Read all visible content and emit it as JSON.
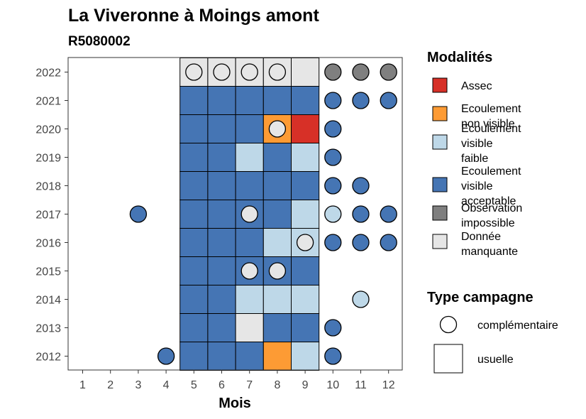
{
  "chart_data": {
    "type": "heatmap",
    "title": "La Viveronne à Moings amont",
    "subtitle": "R5080002",
    "xlabel": "Mois",
    "ylabel": "",
    "x_ticks": [
      "1",
      "2",
      "3",
      "4",
      "5",
      "6",
      "7",
      "8",
      "9",
      "10",
      "11",
      "12"
    ],
    "y_ticks": [
      "2012",
      "2013",
      "2014",
      "2015",
      "2016",
      "2017",
      "2018",
      "2019",
      "2020",
      "2021",
      "2022"
    ],
    "grid": false,
    "legend_position": "right",
    "colors": {
      "assec": "#d73027",
      "non_visible": "#fd9b34",
      "faible": "#bed8e8",
      "acceptable": "#4575b4",
      "impossible": "#7f7f7f",
      "manquante": "#e6e6e6"
    },
    "legend_modalites": {
      "title": "Modalités",
      "items": [
        {
          "key": "assec",
          "lines": [
            "Assec"
          ]
        },
        {
          "key": "non_visible",
          "lines": [
            "Ecoulement",
            "non visible"
          ]
        },
        {
          "key": "faible",
          "lines": [
            "Ecoulement",
            "visible",
            "faible"
          ]
        },
        {
          "key": "acceptable",
          "lines": [
            "Ecoulement",
            "visible",
            "acceptable"
          ]
        },
        {
          "key": "impossible",
          "lines": [
            "Observation",
            "impossible"
          ]
        },
        {
          "key": "manquante",
          "lines": [
            "Donnée",
            "manquante"
          ]
        }
      ]
    },
    "legend_type": {
      "title": "Type campagne",
      "items": [
        {
          "shape": "circle",
          "label": "complémentaire"
        },
        {
          "shape": "square",
          "label": "usuelle"
        }
      ]
    },
    "usuelle": [
      {
        "year": "2022",
        "months": {
          "5": "manquante",
          "6": "manquante",
          "7": "manquante",
          "8": "manquante",
          "9": "manquante"
        }
      },
      {
        "year": "2021",
        "months": {
          "5": "acceptable",
          "6": "acceptable",
          "7": "acceptable",
          "8": "acceptable",
          "9": "acceptable"
        }
      },
      {
        "year": "2020",
        "months": {
          "5": "acceptable",
          "6": "acceptable",
          "7": "acceptable",
          "8": "non_visible",
          "9": "assec"
        }
      },
      {
        "year": "2019",
        "months": {
          "5": "acceptable",
          "6": "acceptable",
          "7": "faible",
          "8": "acceptable",
          "9": "faible"
        }
      },
      {
        "year": "2018",
        "months": {
          "5": "acceptable",
          "6": "acceptable",
          "7": "acceptable",
          "8": "acceptable",
          "9": "acceptable"
        }
      },
      {
        "year": "2017",
        "months": {
          "5": "acceptable",
          "6": "acceptable",
          "7": "acceptable",
          "8": "acceptable",
          "9": "faible"
        }
      },
      {
        "year": "2016",
        "months": {
          "5": "acceptable",
          "6": "acceptable",
          "7": "acceptable",
          "8": "faible",
          "9": "faible"
        }
      },
      {
        "year": "2015",
        "months": {
          "5": "acceptable",
          "6": "acceptable",
          "7": "acceptable",
          "8": "acceptable",
          "9": "acceptable"
        }
      },
      {
        "year": "2014",
        "months": {
          "5": "acceptable",
          "6": "acceptable",
          "7": "faible",
          "8": "faible",
          "9": "faible"
        }
      },
      {
        "year": "2013",
        "months": {
          "5": "acceptable",
          "6": "acceptable",
          "7": "manquante",
          "8": "acceptable",
          "9": "acceptable"
        }
      },
      {
        "year": "2012",
        "months": {
          "5": "acceptable",
          "6": "acceptable",
          "7": "acceptable",
          "8": "non_visible",
          "9": "faible"
        }
      }
    ],
    "complementaire": [
      {
        "year": "2022",
        "month": "5",
        "mod": "manquante"
      },
      {
        "year": "2022",
        "month": "6",
        "mod": "manquante"
      },
      {
        "year": "2022",
        "month": "7",
        "mod": "manquante"
      },
      {
        "year": "2022",
        "month": "8",
        "mod": "manquante"
      },
      {
        "year": "2022",
        "month": "10",
        "mod": "impossible"
      },
      {
        "year": "2022",
        "month": "11",
        "mod": "impossible"
      },
      {
        "year": "2022",
        "month": "12",
        "mod": "impossible"
      },
      {
        "year": "2021",
        "month": "10",
        "mod": "acceptable"
      },
      {
        "year": "2021",
        "month": "11",
        "mod": "acceptable"
      },
      {
        "year": "2021",
        "month": "12",
        "mod": "acceptable"
      },
      {
        "year": "2020",
        "month": "8",
        "mod": "manquante"
      },
      {
        "year": "2020",
        "month": "10",
        "mod": "acceptable"
      },
      {
        "year": "2019",
        "month": "10",
        "mod": "acceptable"
      },
      {
        "year": "2018",
        "month": "10",
        "mod": "acceptable"
      },
      {
        "year": "2018",
        "month": "11",
        "mod": "acceptable"
      },
      {
        "year": "2017",
        "month": "3",
        "mod": "acceptable"
      },
      {
        "year": "2017",
        "month": "7",
        "mod": "manquante"
      },
      {
        "year": "2017",
        "month": "10",
        "mod": "faible"
      },
      {
        "year": "2017",
        "month": "11",
        "mod": "acceptable"
      },
      {
        "year": "2017",
        "month": "12",
        "mod": "acceptable"
      },
      {
        "year": "2016",
        "month": "9",
        "mod": "manquante"
      },
      {
        "year": "2016",
        "month": "10",
        "mod": "acceptable"
      },
      {
        "year": "2016",
        "month": "11",
        "mod": "acceptable"
      },
      {
        "year": "2016",
        "month": "12",
        "mod": "acceptable"
      },
      {
        "year": "2015",
        "month": "7",
        "mod": "manquante"
      },
      {
        "year": "2015",
        "month": "8",
        "mod": "manquante"
      },
      {
        "year": "2014",
        "month": "11",
        "mod": "faible"
      },
      {
        "year": "2013",
        "month": "10",
        "mod": "acceptable"
      },
      {
        "year": "2012",
        "month": "4",
        "mod": "acceptable"
      },
      {
        "year": "2012",
        "month": "10",
        "mod": "acceptable"
      }
    ]
  }
}
